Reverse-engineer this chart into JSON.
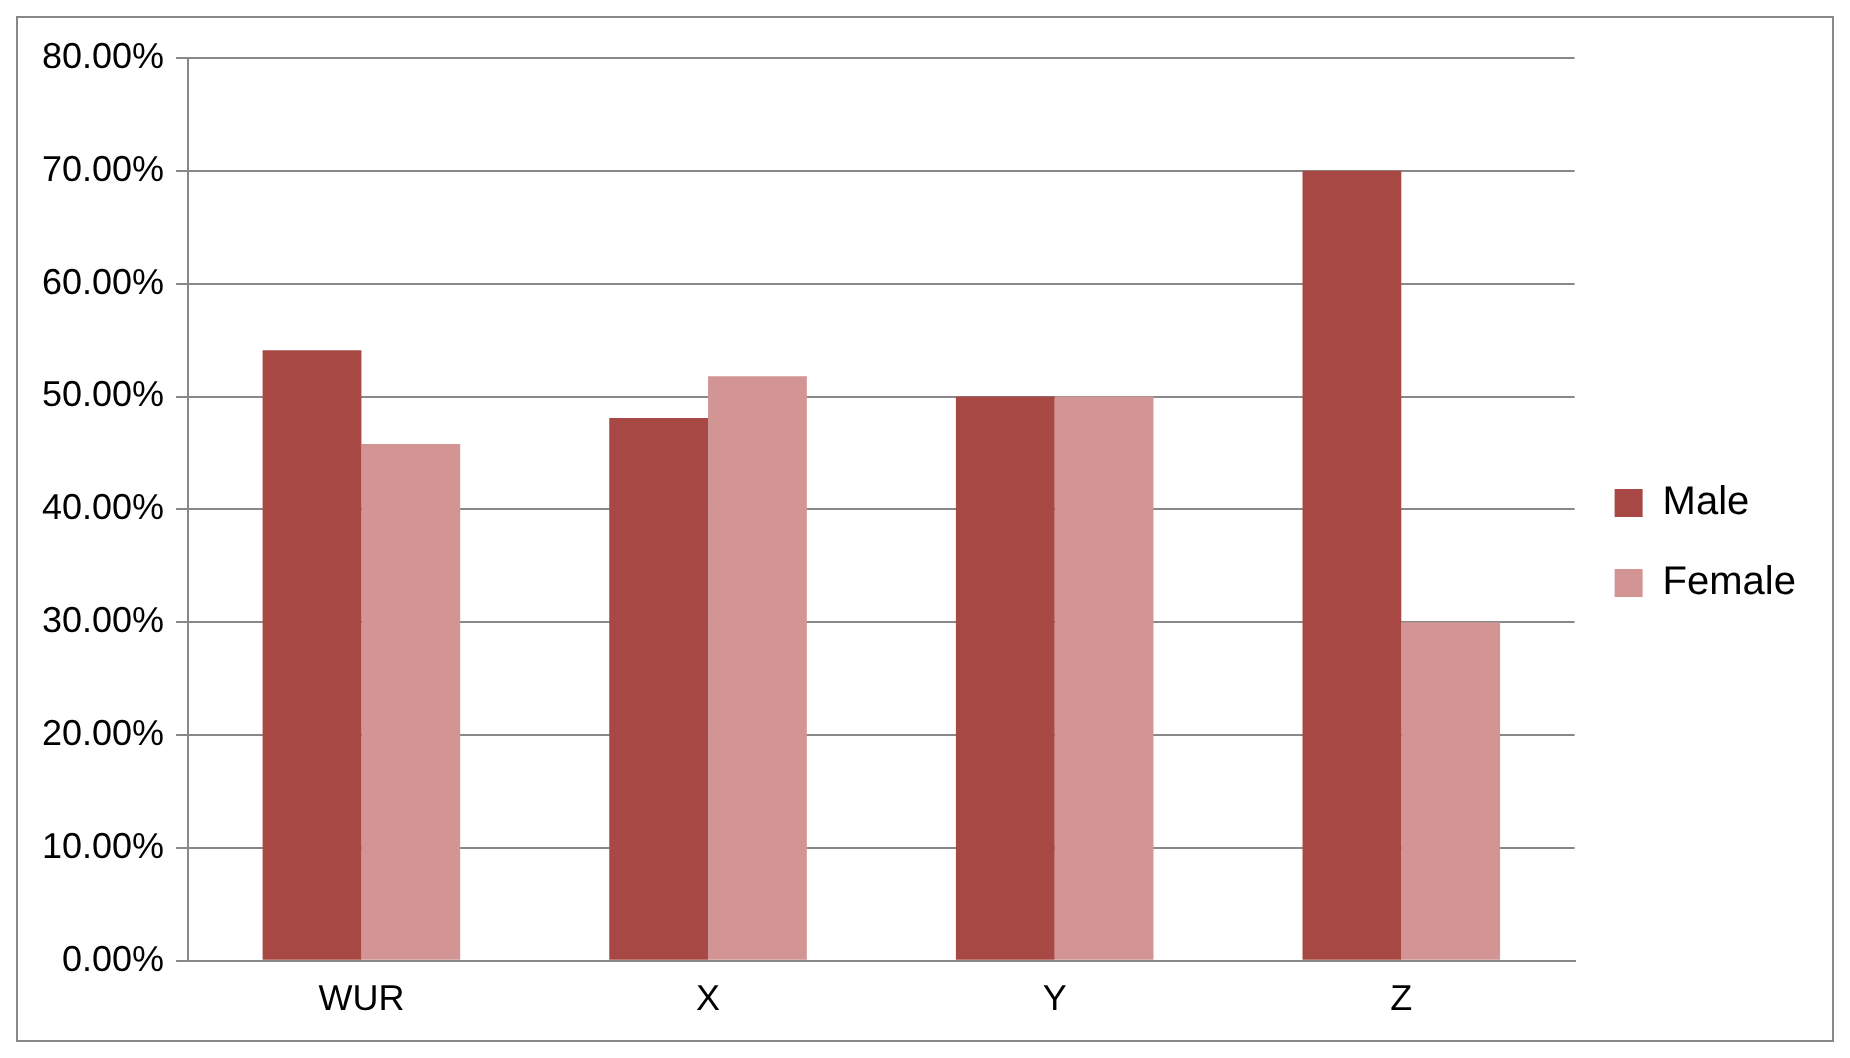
{
  "chart_data": {
    "type": "bar",
    "categories": [
      "WUR",
      "X",
      "Y",
      "Z"
    ],
    "series": [
      {
        "name": "Male",
        "color": "#a84845",
        "values": [
          54.1,
          48.1,
          50,
          70
        ]
      },
      {
        "name": "Female",
        "color": "#d39494",
        "values": [
          45.8,
          51.8,
          50,
          30
        ]
      }
    ],
    "ylim": [
      0,
      80
    ],
    "yticks": [
      {
        "value": 0,
        "label": "0.00%"
      },
      {
        "value": 10,
        "label": "10.00%"
      },
      {
        "value": 20,
        "label": "20.00%"
      },
      {
        "value": 30,
        "label": "30.00%"
      },
      {
        "value": 40,
        "label": "40.00%"
      },
      {
        "value": 50,
        "label": "50.00%"
      },
      {
        "value": 60,
        "label": "60.00%"
      },
      {
        "value": 70,
        "label": "70.00%"
      },
      {
        "value": 80,
        "label": "80.00%"
      }
    ],
    "grid": "y",
    "legend": "right"
  }
}
